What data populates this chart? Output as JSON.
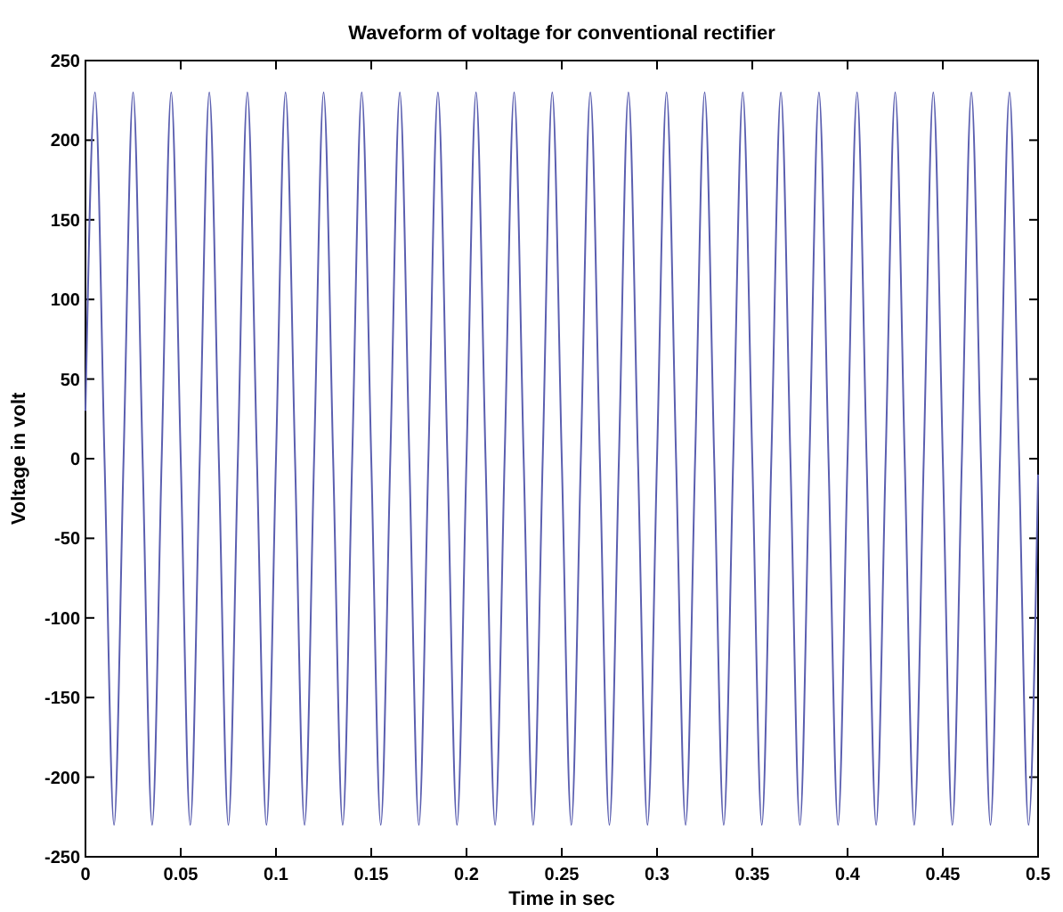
{
  "chart_data": {
    "type": "line",
    "title": "Waveform of voltage for conventional rectifier",
    "xlabel": "Time in sec",
    "ylabel": "Voltage in volt",
    "x": [
      0,
      0.005,
      0.01,
      0.015,
      0.02,
      0.025,
      0.03,
      0.035,
      0.04,
      0.045,
      0.05,
      0.055,
      0.06,
      0.065,
      0.07,
      0.075,
      0.08,
      0.085,
      0.09,
      0.095,
      0.1,
      0.105,
      0.11,
      0.115,
      0.12,
      0.125,
      0.13,
      0.135,
      0.14,
      0.145,
      0.15,
      0.155,
      0.16,
      0.165,
      0.17,
      0.175,
      0.18,
      0.185,
      0.19,
      0.195,
      0.2,
      0.205,
      0.21,
      0.215,
      0.22,
      0.225,
      0.23,
      0.235,
      0.24,
      0.245,
      0.25,
      0.255,
      0.26,
      0.265,
      0.27,
      0.275,
      0.28,
      0.285,
      0.29,
      0.295,
      0.3,
      0.305,
      0.31,
      0.315,
      0.32,
      0.325,
      0.33,
      0.335,
      0.34,
      0.345,
      0.35,
      0.355,
      0.36,
      0.365,
      0.37,
      0.375,
      0.38,
      0.385,
      0.39,
      0.395,
      0.4,
      0.405,
      0.41,
      0.415,
      0.42,
      0.425,
      0.43,
      0.435,
      0.44,
      0.445,
      0.45,
      0.455,
      0.46,
      0.465,
      0.47,
      0.475,
      0.48,
      0.485,
      0.49,
      0.495,
      0.5
    ],
    "series": [
      {
        "color": "#5b5fb0",
        "values": [
          30,
          230,
          0,
          -230,
          0,
          230,
          0,
          -230,
          0,
          230,
          0,
          -230,
          0,
          230,
          0,
          -230,
          0,
          230,
          0,
          -230,
          0,
          230,
          0,
          -230,
          0,
          230,
          0,
          -230,
          0,
          230,
          0,
          -230,
          0,
          230,
          0,
          -230,
          0,
          230,
          0,
          -230,
          0,
          230,
          0,
          -230,
          0,
          230,
          0,
          -230,
          0,
          230,
          0,
          -230,
          0,
          230,
          0,
          -230,
          0,
          230,
          0,
          -230,
          0,
          230,
          0,
          -230,
          0,
          230,
          0,
          -230,
          0,
          230,
          0,
          -230,
          0,
          230,
          0,
          -230,
          0,
          230,
          0,
          -230,
          0,
          230,
          0,
          -230,
          0,
          230,
          0,
          -230,
          0,
          230,
          0,
          -230,
          0,
          230,
          0,
          -230,
          0,
          230,
          0,
          -230,
          -10
        ]
      }
    ],
    "xlim": [
      0,
      0.5
    ],
    "xticks": [
      0,
      0.05,
      0.1,
      0.15,
      0.2,
      0.25,
      0.3,
      0.35,
      0.4,
      0.45,
      0.5
    ],
    "ylim": [
      -250,
      250
    ],
    "yticks": [
      -250,
      -200,
      -150,
      -100,
      -50,
      0,
      50,
      100,
      150,
      200,
      250
    ],
    "grid": false,
    "marker": "none",
    "line_style": "solid"
  }
}
